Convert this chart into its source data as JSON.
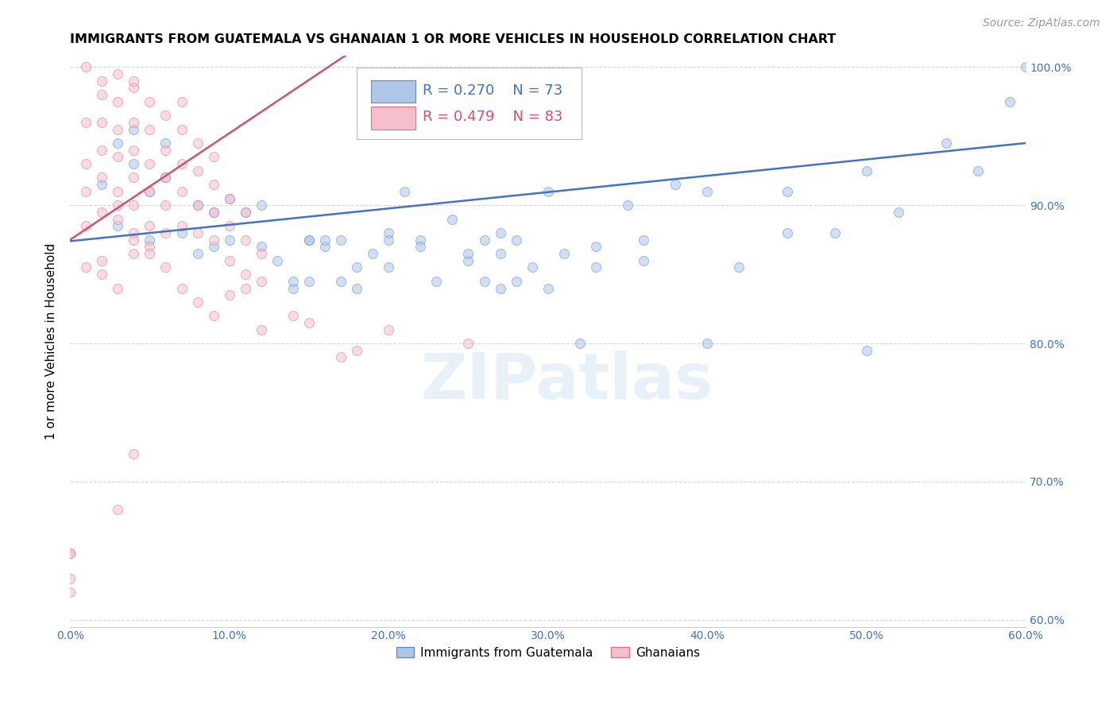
{
  "title": "IMMIGRANTS FROM GUATEMALA VS GHANAIAN 1 OR MORE VEHICLES IN HOUSEHOLD CORRELATION CHART",
  "source": "Source: ZipAtlas.com",
  "ylabel": "1 or more Vehicles in Household",
  "legend_blue_r": "R = 0.270",
  "legend_blue_n": "N = 73",
  "legend_pink_r": "R = 0.479",
  "legend_pink_n": "N = 83",
  "legend_blue_label": "Immigrants from Guatemala",
  "legend_pink_label": "Ghanaians",
  "blue_color": "#aec6e8",
  "blue_edge_color": "#5b8fc9",
  "blue_line_color": "#4472c4",
  "pink_color": "#f5c0cc",
  "pink_edge_color": "#e07090",
  "pink_line_color": "#d45070",
  "text_color_blue": "#4472c4",
  "text_color_pink": "#d45070",
  "xlim": [
    0.0,
    0.6
  ],
  "ylim": [
    0.595,
    1.008
  ],
  "xticks": [
    0.0,
    0.1,
    0.2,
    0.3,
    0.4,
    0.5,
    0.6
  ],
  "xticklabels": [
    "0.0%",
    "10.0%",
    "20.0%",
    "30.0%",
    "40.0%",
    "50.0%",
    "60.0%"
  ],
  "yticks_right": [
    0.6,
    0.7,
    0.8,
    0.9,
    1.0
  ],
  "ytick_labels_right": [
    "60.0%",
    "70.0%",
    "80.0%",
    "90.0%",
    "100.0%"
  ],
  "blue_x": [
    0.02,
    0.03,
    0.04,
    0.04,
    0.05,
    0.06,
    0.06,
    0.07,
    0.08,
    0.08,
    0.09,
    0.1,
    0.1,
    0.11,
    0.12,
    0.12,
    0.13,
    0.14,
    0.15,
    0.15,
    0.16,
    0.17,
    0.17,
    0.18,
    0.19,
    0.2,
    0.2,
    0.21,
    0.22,
    0.23,
    0.24,
    0.25,
    0.26,
    0.26,
    0.27,
    0.27,
    0.28,
    0.28,
    0.29,
    0.3,
    0.31,
    0.32,
    0.33,
    0.35,
    0.36,
    0.38,
    0.4,
    0.42,
    0.45,
    0.48,
    0.5,
    0.52,
    0.55,
    0.57,
    0.59,
    0.6,
    0.03,
    0.05,
    0.09,
    0.14,
    0.15,
    0.16,
    0.18,
    0.2,
    0.22,
    0.25,
    0.27,
    0.3,
    0.33,
    0.36,
    0.4,
    0.45,
    0.5
  ],
  "blue_y": [
    0.915,
    0.945,
    0.93,
    0.955,
    0.91,
    0.92,
    0.945,
    0.88,
    0.9,
    0.865,
    0.895,
    0.905,
    0.875,
    0.895,
    0.87,
    0.9,
    0.86,
    0.84,
    0.875,
    0.845,
    0.87,
    0.845,
    0.875,
    0.84,
    0.865,
    0.855,
    0.88,
    0.91,
    0.875,
    0.845,
    0.89,
    0.86,
    0.845,
    0.875,
    0.84,
    0.865,
    0.845,
    0.875,
    0.855,
    0.84,
    0.865,
    0.8,
    0.855,
    0.9,
    0.86,
    0.915,
    0.8,
    0.855,
    0.91,
    0.88,
    0.925,
    0.895,
    0.945,
    0.925,
    0.975,
    1.0,
    0.885,
    0.875,
    0.87,
    0.845,
    0.875,
    0.875,
    0.855,
    0.875,
    0.87,
    0.865,
    0.88,
    0.91,
    0.87,
    0.875,
    0.91,
    0.88,
    0.795
  ],
  "pink_x": [
    0.0,
    0.0,
    0.0,
    0.01,
    0.01,
    0.01,
    0.01,
    0.02,
    0.02,
    0.02,
    0.02,
    0.02,
    0.03,
    0.03,
    0.03,
    0.03,
    0.03,
    0.04,
    0.04,
    0.04,
    0.04,
    0.04,
    0.04,
    0.05,
    0.05,
    0.05,
    0.05,
    0.05,
    0.06,
    0.06,
    0.06,
    0.06,
    0.06,
    0.07,
    0.07,
    0.07,
    0.07,
    0.07,
    0.08,
    0.08,
    0.08,
    0.08,
    0.09,
    0.09,
    0.09,
    0.09,
    0.1,
    0.1,
    0.1,
    0.11,
    0.11,
    0.11,
    0.12,
    0.12,
    0.14,
    0.15,
    0.17,
    0.18,
    0.2,
    0.25,
    0.0,
    0.01,
    0.02,
    0.03,
    0.04,
    0.05,
    0.06,
    0.07,
    0.08,
    0.09,
    0.1,
    0.11,
    0.12,
    0.03,
    0.04,
    0.05,
    0.02,
    0.03,
    0.04,
    0.01,
    0.02,
    0.03,
    0.04
  ],
  "pink_y": [
    0.63,
    0.648,
    0.648,
    0.885,
    0.91,
    0.93,
    0.96,
    0.895,
    0.92,
    0.94,
    0.96,
    0.98,
    0.89,
    0.91,
    0.935,
    0.955,
    0.975,
    0.88,
    0.9,
    0.92,
    0.94,
    0.96,
    0.985,
    0.885,
    0.91,
    0.93,
    0.955,
    0.975,
    0.88,
    0.9,
    0.92,
    0.94,
    0.965,
    0.885,
    0.91,
    0.93,
    0.955,
    0.975,
    0.88,
    0.9,
    0.925,
    0.945,
    0.875,
    0.895,
    0.915,
    0.935,
    0.86,
    0.885,
    0.905,
    0.85,
    0.875,
    0.895,
    0.845,
    0.865,
    0.82,
    0.815,
    0.79,
    0.795,
    0.81,
    0.8,
    0.62,
    0.855,
    0.86,
    0.9,
    0.875,
    0.87,
    0.855,
    0.84,
    0.83,
    0.82,
    0.835,
    0.84,
    0.81,
    0.68,
    0.72,
    0.865,
    0.85,
    0.84,
    0.865,
    1.0,
    0.99,
    0.995,
    0.99
  ],
  "blue_trend_x": [
    0.0,
    0.6
  ],
  "blue_trend_y": [
    0.874,
    0.945
  ],
  "pink_trend_x": [
    0.0,
    0.175
  ],
  "pink_trend_y": [
    0.875,
    1.01
  ],
  "watermark": "ZIPatlas",
  "marker_size": 75,
  "marker_alpha": 0.55,
  "grid_color": "#cccccc",
  "grid_style": "--",
  "grid_alpha": 0.8,
  "title_fontsize": 11.5,
  "axis_label_fontsize": 11,
  "tick_fontsize": 10,
  "source_fontsize": 10
}
